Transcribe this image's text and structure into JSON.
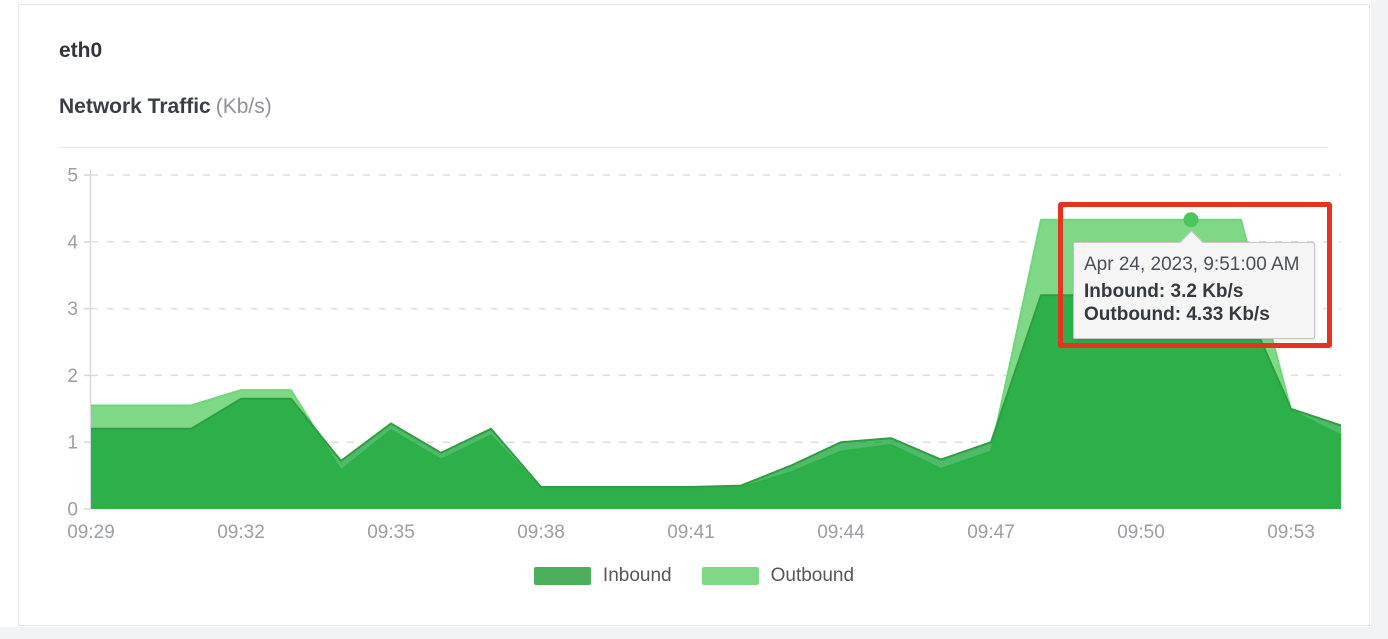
{
  "header": {
    "interface": "eth0",
    "chart_title": "Network Traffic",
    "chart_unit": "(Kb/s)"
  },
  "chart_data": {
    "type": "area",
    "title": "Network Traffic (Kb/s)",
    "xlabel": "",
    "ylabel": "Kb/s",
    "ylim": [
      0,
      5
    ],
    "yticks": [
      0,
      1,
      2,
      3,
      4,
      5
    ],
    "xtick_labels_shown": [
      "09:29",
      "09:32",
      "09:35",
      "09:38",
      "09:41",
      "09:44",
      "09:47",
      "09:50",
      "09:53"
    ],
    "xtick_every": 3,
    "grid": "horizontal-dashed",
    "legend_position": "bottom",
    "x": [
      "09:29",
      "09:30",
      "09:31",
      "09:32",
      "09:33",
      "09:34",
      "09:35",
      "09:36",
      "09:37",
      "09:38",
      "09:39",
      "09:40",
      "09:41",
      "09:42",
      "09:43",
      "09:44",
      "09:45",
      "09:46",
      "09:47",
      "09:48",
      "09:49",
      "09:50",
      "09:51",
      "09:52",
      "09:53",
      "09:54"
    ],
    "series": [
      {
        "name": "Inbound",
        "swatch": "#4caf5e",
        "line": "#2f9e43",
        "fill": "rgba(18,162,53,0.74)",
        "values": [
          1.2,
          1.2,
          1.2,
          1.65,
          1.65,
          0.72,
          1.28,
          0.84,
          1.2,
          0.33,
          0.33,
          0.33,
          0.33,
          0.35,
          0.65,
          1.0,
          1.06,
          0.74,
          1.0,
          3.2,
          3.2,
          3.2,
          3.2,
          3.2,
          1.5,
          1.25
        ]
      },
      {
        "name": "Outbound",
        "swatch": "#7ed885",
        "line": "#6fd67c",
        "fill": "#7ed885",
        "values": [
          1.55,
          1.55,
          1.55,
          1.78,
          1.78,
          0.58,
          1.18,
          0.74,
          1.1,
          0.3,
          0.3,
          0.3,
          0.3,
          0.32,
          0.55,
          0.86,
          0.96,
          0.6,
          0.86,
          4.33,
          4.33,
          4.33,
          4.33,
          4.33,
          1.48,
          1.1
        ]
      }
    ]
  },
  "tooltip": {
    "timestamp": "Apr 24, 2023, 9:51:00 AM",
    "inbound_line": "Inbound: 3.2 Kb/s",
    "outbound_line": "Outbound: 4.33 Kb/s",
    "marker": {
      "x": "09:51",
      "x_index": 22,
      "series": "Outbound",
      "value": 4.33,
      "color": "#4cc65c"
    }
  },
  "annotation": {
    "shape": "rectangle",
    "color": "#e5331f"
  }
}
